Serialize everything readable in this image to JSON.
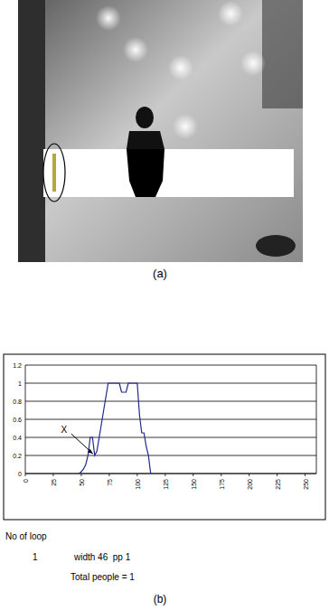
{
  "panel_a": {
    "label": "(a)"
  },
  "panel_b": {
    "label": "(b)"
  },
  "chart_data": {
    "type": "line",
    "x": [
      48,
      50,
      52,
      54,
      56,
      58,
      60,
      62,
      64,
      66,
      68,
      70,
      72,
      74,
      76,
      78,
      80,
      82,
      84,
      86,
      88,
      90,
      92,
      94,
      96,
      98,
      100,
      102,
      104,
      106,
      108,
      110,
      112
    ],
    "series": [
      {
        "color": "#1f2a8c",
        "values": [
          0,
          0.02,
          0.05,
          0.1,
          0.2,
          0.4,
          0.4,
          0.2,
          0.25,
          0.4,
          0.55,
          0.7,
          0.85,
          1,
          1,
          1,
          1,
          1,
          1,
          0.9,
          0.9,
          0.9,
          1,
          1,
          1,
          1,
          1,
          0.65,
          0.45,
          0.45,
          0.3,
          0.2,
          0
        ]
      }
    ],
    "xlim": [
      0,
      260
    ],
    "xticks": [
      0,
      25,
      50,
      75,
      100,
      125,
      150,
      175,
      200,
      225,
      250
    ],
    "ylim": [
      0,
      1.2
    ],
    "yticks": [
      0,
      0.2,
      0.4,
      0.6,
      0.8,
      1,
      1.2
    ],
    "grid": true,
    "annotations": [
      {
        "text": "X",
        "x": 62,
        "y": 0.2
      }
    ]
  },
  "info": {
    "heading": "No of loop",
    "rows": [
      {
        "loop": "1",
        "text": "width 46  pp 1"
      }
    ],
    "total": "Total people = 1"
  }
}
